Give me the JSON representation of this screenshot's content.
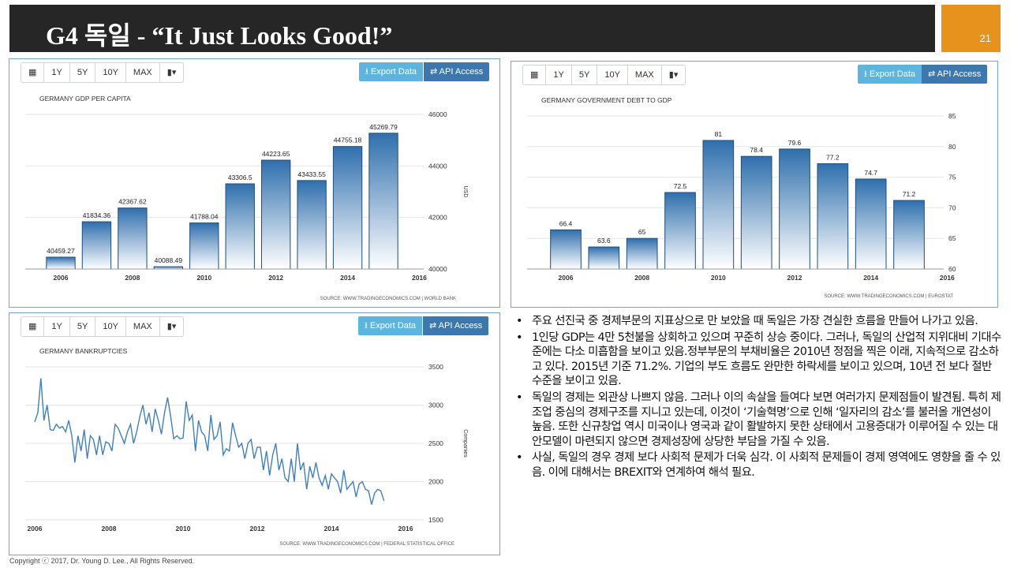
{
  "slide": {
    "title": "G4 독일 - “It Just Looks Good!”",
    "page_number": "21"
  },
  "toolbar": {
    "calendar_icon": "calendar-icon",
    "ranges": [
      "1Y",
      "5Y",
      "10Y",
      "MAX"
    ],
    "chart_icon": "bar-chart-icon",
    "export_label": "Export Data",
    "api_label": "API Access"
  },
  "colors": {
    "title_bg": "#262626",
    "accent": "#e8921e",
    "bar_top": "#2f6fad",
    "bar_bottom": "#ffffff",
    "line": "#3f7fbf",
    "export_bg": "#5bb5df",
    "api_bg": "#3c78ae"
  },
  "chart_data": [
    {
      "type": "bar",
      "title": "GERMANY GDP PER CAPITA",
      "ylabel": "USD",
      "source": "SOURCE: WWW.TRADINGECONOMICS.COM | WORLD BANK",
      "values": [
        40459.27,
        41834.36,
        42367.62,
        40088.49,
        41788.04,
        43306.5,
        44223.65,
        43433.55,
        44755.18,
        45269.79
      ],
      "value_labels": [
        "40459.27",
        "41834.36",
        "42367.62",
        "40088.49",
        "41788.04",
        "43306.5",
        "44223.65",
        "43433.55",
        "44755.18",
        "45269.79"
      ],
      "x_ticks": [
        "2006",
        "2008",
        "2010",
        "2012",
        "2014",
        "2016"
      ],
      "y_ticks": [
        "40000",
        "42000",
        "44000",
        "46000"
      ],
      "ylim": [
        40000,
        46000
      ]
    },
    {
      "type": "bar",
      "title": "GERMANY GOVERNMENT DEBT TO GDP",
      "source": "SOURCE: WWW.TRADINGECONOMICS.COM | EUROSTAT",
      "values": [
        66.4,
        63.6,
        65,
        72.5,
        81,
        78.4,
        79.6,
        77.2,
        74.7,
        71.2
      ],
      "value_labels": [
        "66.4",
        "63.6",
        "65",
        "72.5",
        "81",
        "78.4",
        "79.6",
        "77.2",
        "74.7",
        "71.2"
      ],
      "x_ticks": [
        "2006",
        "2008",
        "2010",
        "2012",
        "2014",
        "2016"
      ],
      "y_ticks": [
        "60",
        "65",
        "70",
        "75",
        "80",
        "85"
      ],
      "ylim": [
        60,
        85
      ]
    },
    {
      "type": "line",
      "title": "GERMANY BANKRUPTCIES",
      "ylabel": "Companies",
      "source": "SOURCE: WWW.TRADINGECONOMICS.COM | FEDERAL STATISTICAL OFFICE",
      "x_start": 2006.0,
      "x_step": 0.08333,
      "values": [
        2780,
        2900,
        3350,
        2800,
        3000,
        2680,
        2670,
        2750,
        2700,
        2720,
        2650,
        2800,
        2600,
        2250,
        2600,
        2400,
        2680,
        2300,
        2600,
        2550,
        2350,
        2600,
        2350,
        2520,
        2500,
        2400,
        2750,
        2700,
        2600,
        2500,
        2650,
        2750,
        2500,
        2650,
        2850,
        3000,
        2750,
        2900,
        2650,
        2950,
        2800,
        2620,
        2900,
        3100,
        2850,
        2560,
        2600,
        2560,
        2570,
        3050,
        2800,
        2870,
        2400,
        2800,
        2650,
        2600,
        2400,
        2870,
        2550,
        2600,
        2780,
        2350,
        2430,
        2400,
        2770,
        2600,
        2450,
        2500,
        2300,
        2500,
        2550,
        2300,
        2450,
        2450,
        2150,
        2400,
        2080,
        2350,
        2500,
        2150,
        2300,
        2050,
        2000,
        2300,
        2000,
        2500,
        2150,
        2250,
        1900,
        2200,
        2050,
        2250,
        2050,
        1950,
        2080,
        1900,
        2100,
        2050,
        2000,
        1850,
        2150,
        1900,
        1950,
        2000,
        1800,
        1970,
        2000,
        1900,
        1880,
        1700,
        1850,
        1900,
        1880,
        1750
      ],
      "x_ticks": [
        "2006",
        "2008",
        "2010",
        "2012",
        "2014",
        "2016"
      ],
      "y_ticks": [
        "1500",
        "2000",
        "2500",
        "3000",
        "3500"
      ],
      "ylim": [
        1500,
        3500
      ]
    }
  ],
  "bullets": [
    "주요 선진국 중 경제부문의 지표상으로 만 보았을 때 독일은 가장 견실한 흐름을 만들어 나가고 있음.",
    "1인당 GDP는 4만 5천불을 상회하고 있으며 꾸준히 상승 중이다. 그러나, 독일의 산업적 지위대비 기대수준에는 다소 미흡함을 보이고 있음.정부부문의 부채비율은 2010년 정점을 찍은 이래, 지속적으로 감소하고 있다. 2015년 기준 71.2%. 기업의 부도 흐름도 완만한 하락세를 보이고 있으며, 10년 전 보다 절반 수준을 보이고 있음.",
    "독일의 경제는 외관상 나쁘지 않음. 그러나 이의 속살을 들여다 보면 여러가지 문제점들이 발견됨. 특히 제조업 중심의 경제구조를 지니고 있는데, 이것이 ‘기술혁명’으로 인해 ‘일자리의 감소’를 불러올 개연성이 높음. 또한 신규창업 역시 미국이나 영국과 같이 활발하지 못한 상태에서 고용증대가 이루어질 수 있는 대안모델이 마련되지 않으면 경제성장에 상당한 부담을 가질 수 있음.",
    "사실, 독일의 경우 경제 보다 사회적 문제가 더욱 심각. 이 사회적 문제들이 경제 영역에도 영향을 줄 수 있음. 이에 대해서는 BREXIT와 연계하여 해석 필요."
  ],
  "copyright": "Copyright ⓒ 2017, Dr. Young D. Lee., All Rights Reserved."
}
